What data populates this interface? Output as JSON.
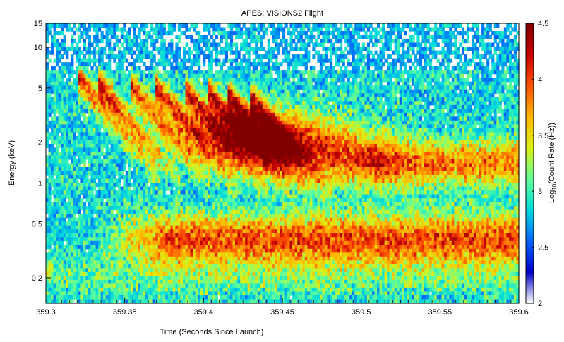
{
  "chart_data": {
    "type": "heatmap",
    "title": "APES: VISIONS2 Flight",
    "xlabel": "Time (Seconds Since Launch)",
    "ylabel": "Energy (keV)",
    "xlim": [
      359.3,
      359.6
    ],
    "ylim": [
      0.13,
      15
    ],
    "y_scale": "log",
    "x_ticks": [
      359.3,
      359.35,
      359.4,
      359.45,
      359.5,
      359.55,
      359.6
    ],
    "x_tick_labels": [
      "359.3",
      "359.35",
      "359.4",
      "359.45",
      "359.5",
      "359.55",
      "359.6"
    ],
    "y_ticks": [
      0.2,
      0.5,
      1,
      2,
      5,
      10,
      15
    ],
    "y_tick_labels": [
      "0.2",
      "0.5",
      "1",
      "2",
      "5",
      "10",
      "15"
    ],
    "colorbar": {
      "label_prefix": "Log",
      "label_sub": "10",
      "label_suffix": "(Count Rate (Hz))",
      "range": [
        2,
        4.5
      ],
      "ticks": [
        2,
        2.5,
        3,
        3.5,
        4,
        4.5
      ],
      "tick_labels": [
        "2",
        "2.5",
        "3",
        "3.5",
        "4",
        "4.5"
      ],
      "colormap": "jet",
      "colors": [
        "#ffffff",
        "#0000c8",
        "#0064ff",
        "#00dcdc",
        "#64ff96",
        "#dcf014",
        "#ffb400",
        "#ff5000",
        "#c80000",
        "#800000"
      ]
    },
    "features": [
      {
        "name": "inverted-V dispersive bursts",
        "t_range": [
          359.32,
          359.48
        ],
        "energy_keV": [
          1.0,
          6.0
        ],
        "peak_log10_rate": 4.5
      },
      {
        "name": "low-energy band",
        "t_range": [
          359.35,
          359.6
        ],
        "energy_keV": [
          0.25,
          0.6
        ],
        "peak_log10_rate": 4.1
      },
      {
        "name": "background",
        "t_range": [
          359.3,
          359.6
        ],
        "energy_keV": [
          0.13,
          15
        ],
        "peak_log10_rate": 3.0
      }
    ],
    "grid": false,
    "legend": "colorbar-right"
  }
}
